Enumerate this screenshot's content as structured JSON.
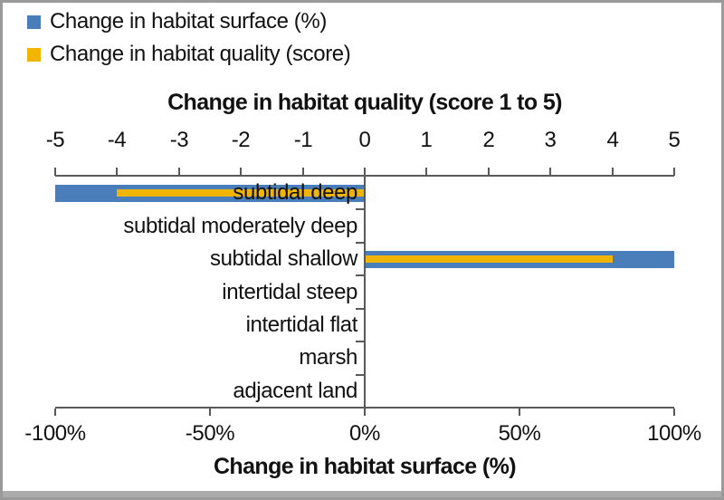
{
  "chart_data": {
    "type": "bar",
    "orientation": "horizontal",
    "title": "",
    "categories": [
      "subtidal deep",
      "subtidal moderately deep",
      "subtidal shallow",
      "intertidal steep",
      "intertidal flat",
      "marsh",
      "adjacent land"
    ],
    "series": [
      {
        "name": "Change in habitat surface (%)",
        "axis": "bottom",
        "unit": "%",
        "color": "#4a7ebb",
        "values": [
          -100,
          0,
          100,
          0,
          0,
          0,
          0
        ]
      },
      {
        "name": "Change in habitat quality (score)",
        "axis": "top",
        "unit": "score",
        "color": "#f1b400",
        "values": [
          -4,
          0,
          4,
          0,
          0,
          0,
          0
        ]
      }
    ],
    "top_axis": {
      "title": "Change in habitat quality (score 1 to 5)",
      "min": -5,
      "max": 5,
      "tick_values": [
        -5,
        -4,
        -3,
        -2,
        -1,
        0,
        1,
        2,
        3,
        4,
        5
      ],
      "tick_labels": [
        "-5",
        "-4",
        "-3",
        "-2",
        "-1",
        "0",
        "1",
        "2",
        "3",
        "4",
        "5"
      ]
    },
    "bottom_axis": {
      "title": "Change in habitat surface (%)",
      "min": -100,
      "max": 100,
      "tick_values": [
        -100,
        -50,
        0,
        50,
        100
      ],
      "tick_labels": [
        "-100%",
        "-50%",
        "0%",
        "50%",
        "100%"
      ]
    },
    "legend_position": "top-left",
    "grid": false,
    "colors": {
      "axis_line": "#595959",
      "text": "#111111",
      "frame_border": "#9a9a9a",
      "bottom_strip": "#ababab",
      "background": "#ffffff"
    }
  }
}
